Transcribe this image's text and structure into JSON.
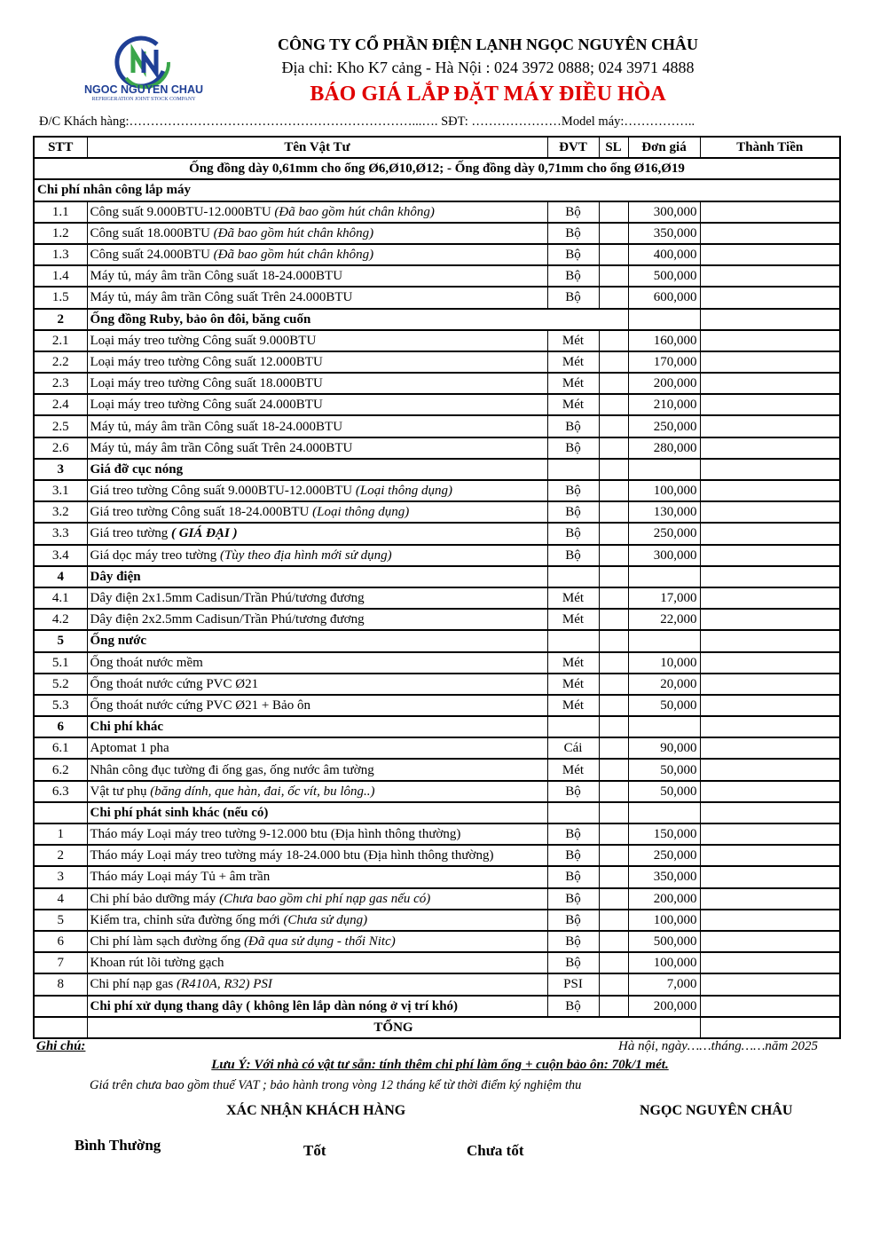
{
  "header": {
    "logo_text": "NGOC NGUYEN CHAU",
    "logo_sub": "REFRIGERATION JOINT STOCK COMPANY",
    "company": "CÔNG TY CỔ PHẦN ĐIỆN LẠNH NGỌC NGUYÊN CHÂU",
    "address": "Địa chỉ: Kho K7 cảng - Hà Nội : 024 3972 0888; 024 3971 4888",
    "title": "BÁO GIÁ  LẮP ĐẶT MÁY ĐIỀU HÒA",
    "customer_line": "Đ/C Khách hàng:…………………………………………………………...…. SĐT: …………………Model máy:……………..",
    "title_color": "#e00000"
  },
  "table": {
    "columns": [
      "STT",
      "Tên Vật Tư",
      "ĐVT",
      "SL",
      "Đơn giá",
      "Thành Tiền"
    ],
    "spec_note": "Ống đồng dày 0,61mm cho ống Ø6,Ø10,Ø12;  - Ống đồng dày 0,71mm cho ống Ø16,Ø19",
    "first_section": "Chi phí nhân công lắp máy",
    "rows": [
      {
        "stt": "1.1",
        "name": "Công suất 9.000BTU-12.000BTU ",
        "note": "(Đã bao gồm hút chân không)",
        "unit": "Bộ",
        "price": "300,000"
      },
      {
        "stt": "1.2",
        "name": "Công suất 18.000BTU ",
        "note": "(Đã bao gồm hút chân không)",
        "unit": "Bộ",
        "price": "350,000"
      },
      {
        "stt": "1.3",
        "name": "Công suất 24.000BTU ",
        "note": "(Đã bao gồm hút chân không)",
        "unit": "Bộ",
        "price": "400,000"
      },
      {
        "stt": "1.4",
        "name": "Máy tủ, máy âm trần Công suất 18-24.000BTU",
        "unit": "Bộ",
        "price": "500,000"
      },
      {
        "stt": "1.5",
        "name": "Máy tủ, máy âm trần Công suất Trên 24.000BTU",
        "unit": "Bộ",
        "price": "600,000"
      },
      {
        "stt": "2",
        "name": "Ống đồng Ruby, bảo ôn đôi, băng cuốn",
        "section": true
      },
      {
        "stt": "2.1",
        "name": "Loại máy treo tường Công suất 9.000BTU",
        "unit": "Mét",
        "price": "160,000"
      },
      {
        "stt": "2.2",
        "name": "Loại máy treo tường Công suất 12.000BTU",
        "unit": "Mét",
        "price": "170,000"
      },
      {
        "stt": "2.3",
        "name": "Loại máy treo tường Công suất 18.000BTU",
        "unit": "Mét",
        "price": "200,000"
      },
      {
        "stt": "2.4",
        "name": "Loại máy treo tường Công suất 24.000BTU",
        "unit": "Mét",
        "price": "210,000"
      },
      {
        "stt": "2.5",
        "name": "Máy tủ, máy âm trần Công suất 18-24.000BTU",
        "unit": "Bộ",
        "price": "250,000"
      },
      {
        "stt": "2.6",
        "name": "Máy tủ, máy âm trần Công suất Trên 24.000BTU",
        "unit": "Bộ",
        "price": "280,000"
      },
      {
        "stt": "3",
        "name": "Giá đỡ cục nóng",
        "section": true
      },
      {
        "stt": "3.1",
        "name": "Giá treo tường Công suất 9.000BTU-12.000BTU ",
        "note": "(Loại thông dụng)",
        "unit": "Bộ",
        "price": "100,000"
      },
      {
        "stt": "3.2",
        "name": "Giá treo tường Công suất 18-24.000BTU ",
        "note": "(Loại thông dụng)",
        "unit": "Bộ",
        "price": "130,000"
      },
      {
        "stt": "3.3",
        "name": "Giá treo tường ",
        "note": "( GIÁ ĐẠI )",
        "note_bold": true,
        "unit": "Bộ",
        "price": "250,000"
      },
      {
        "stt": "3.4",
        "name": "Giá dọc máy treo tường ",
        "note": "(Tùy theo địa hình mới sử dụng)",
        "unit": "Bộ",
        "price": "300,000"
      },
      {
        "stt": "4",
        "name": "Dây điện",
        "section": true
      },
      {
        "stt": "4.1",
        "name": "Dây điện 2x1.5mm Cadisun/Trần Phú/tương đương",
        "unit": "Mét",
        "price": "17,000"
      },
      {
        "stt": "4.2",
        "name": "Dây điện 2x2.5mm Cadisun/Trần Phú/tương đương",
        "unit": "Mét",
        "price": "22,000"
      },
      {
        "stt": "5",
        "name": "Ống nước",
        "section": true
      },
      {
        "stt": "5.1",
        "name": "Ống thoát nước mềm",
        "unit": "Mét",
        "price": "10,000"
      },
      {
        "stt": "5.2",
        "name": "Ống thoát nước cứng PVC Ø21",
        "unit": "Mét",
        "price": "20,000"
      },
      {
        "stt": "5.3",
        "name": "Ống thoát nước cứng PVC Ø21 + Bảo ôn",
        "unit": "Mét",
        "price": "50,000"
      },
      {
        "stt": "6",
        "name": "Chi phí khác",
        "section": true
      },
      {
        "stt": "6.1",
        "name": "Aptomat 1 pha",
        "unit": "Cái",
        "price": "90,000"
      },
      {
        "stt": "6.2",
        "name": "Nhân công đục tường đi ống gas, ống nước âm tường",
        "unit": "Mét",
        "price": "50,000"
      },
      {
        "stt": "6.3",
        "name": "Vật tư phụ ",
        "note": "(băng dính, que hàn, đai, ốc vít, bu lông..)",
        "unit": "Bộ",
        "price": "50,000"
      },
      {
        "stt": "",
        "name": "Chi phí phát sinh khác (nếu có)",
        "section": true
      },
      {
        "stt": "1",
        "name": "Tháo máy Loại máy treo tường 9-12.000  btu (Địa hình thông thường)",
        "unit": "Bộ",
        "price": "150,000"
      },
      {
        "stt": "2",
        "name": "Tháo máy Loại máy treo tường máy 18-24.000 btu (Địa hình thông thường)",
        "unit": "Bộ",
        "price": "250,000"
      },
      {
        "stt": "3",
        "name": "Tháo máy Loại máy Tủ + âm trần",
        "unit": "Bộ",
        "price": "350,000"
      },
      {
        "stt": "4",
        "name": "Chi phí bảo dưỡng máy ",
        "note": "(Chưa bao gồm chi phí nạp gas nếu có)",
        "unit": "Bộ",
        "price": "200,000"
      },
      {
        "stt": "5",
        "name": "Kiểm tra, chỉnh sửa đường ống mới ",
        "note": "(Chưa sử dụng)",
        "unit": "Bộ",
        "price": "100,000"
      },
      {
        "stt": "6",
        "name": "Chi phí làm sạch đường ống ",
        "note": "(Đã qua sử dụng - thổi Nitc)",
        "unit": "Bộ",
        "price": "500,000"
      },
      {
        "stt": "7",
        "name": "Khoan rút lõi tường gạch",
        "unit": "Bộ",
        "price": "100,000"
      },
      {
        "stt": "8",
        "name": "Chi phí nạp gas ",
        "note": "(R410A, R32) PSI",
        "unit": "PSI",
        "price": "7,000"
      },
      {
        "stt": "",
        "name": "Chi phí xử dụng thang dây ( không lên lắp dàn nóng ở vị trí khó)",
        "bold": true,
        "unit": "Bộ",
        "price": "200,000"
      }
    ],
    "total_label": "TỔNG"
  },
  "footer": {
    "note_label": "Ghi chú:",
    "date": "Hà nội, ngày……tháng……năm 2025",
    "luu_y": "Lưu Ý: Với nhà có vật tư sẵn:  tính thêm chi phí làm ống + cuộn bảo ôn: 70k/1 mét.",
    "vat": "Giá trên chưa bao gồm thuế VAT ; bảo hành trong vòng 12 tháng kể từ thời điểm ký nghiệm thu",
    "customer_confirm": "XÁC NHẬN KHÁCH HÀNG",
    "company_sign": "NGỌC NGUYÊN CHÂU",
    "ratings": [
      "Bình Thường",
      "Tốt",
      "Chưa tốt"
    ]
  }
}
